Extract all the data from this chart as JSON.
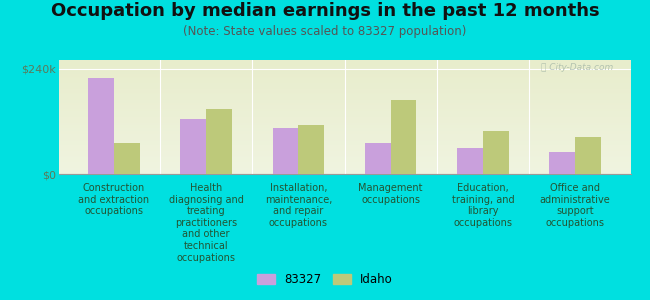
{
  "title": "Occupation by median earnings in the past 12 months",
  "subtitle": "(Note: State values scaled to 83327 population)",
  "categories": [
    "Construction\nand extraction\noccupations",
    "Health\ndiagnosing and\ntreating\npractitioners\nand other\ntechnical\noccupations",
    "Installation,\nmaintenance,\nand repair\noccupations",
    "Management\noccupations",
    "Education,\ntraining, and\nlibrary\noccupations",
    "Office and\nadministrative\nsupport\noccupations"
  ],
  "values_83327": [
    220000,
    125000,
    105000,
    70000,
    60000,
    50000
  ],
  "values_idaho": [
    70000,
    148000,
    112000,
    168000,
    98000,
    85000
  ],
  "color_83327": "#c9a0dc",
  "color_idaho": "#bdc97a",
  "ylim": [
    0,
    260000
  ],
  "background_color": "#00e0e0",
  "legend_label_83327": "83327",
  "legend_label_idaho": "Idaho",
  "watermark": "ⓘ City-Data.com",
  "title_fontsize": 13,
  "subtitle_fontsize": 8.5,
  "label_fontsize": 7,
  "ytick_fontsize": 8
}
